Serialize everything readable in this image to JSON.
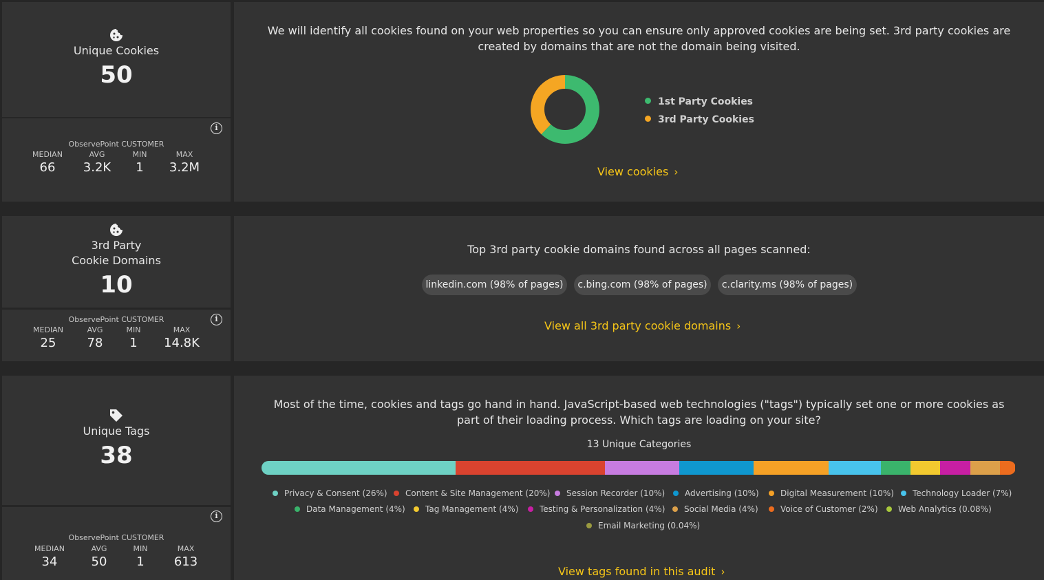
{
  "cookies": {
    "title": "Unique Cookies",
    "value": "50",
    "bench_label": "ObservePoint CUSTOMER",
    "stats": [
      {
        "label": "MEDIAN",
        "value": "66"
      },
      {
        "label": "AVG",
        "value": "3.2K"
      },
      {
        "label": "MIN",
        "value": "1"
      },
      {
        "label": "MAX",
        "value": "3.2M"
      }
    ],
    "description": "We will identify all cookies found on your web properties so you can ensure only approved cookies are being set. 3rd party cookies are created by domains that are not the domain being visited.",
    "link": "View cookies"
  },
  "domains": {
    "title_line1": "3rd Party",
    "title_line2": "Cookie Domains",
    "value": "10",
    "bench_label": "ObservePoint CUSTOMER",
    "stats": [
      {
        "label": "MEDIAN",
        "value": "25"
      },
      {
        "label": "AVG",
        "value": "78"
      },
      {
        "label": "MIN",
        "value": "1"
      },
      {
        "label": "MAX",
        "value": "14.8K"
      }
    ],
    "description": "Top 3rd party cookie domains found across all pages scanned:",
    "chips": [
      "linkedin.com (98% of pages)",
      "c.bing.com (98% of pages)",
      "c.clarity.ms (98% of pages)"
    ],
    "link": "View all 3rd party cookie domains"
  },
  "tags": {
    "title": "Unique Tags",
    "value": "38",
    "bench_label": "ObservePoint CUSTOMER",
    "stats": [
      {
        "label": "MEDIAN",
        "value": "34"
      },
      {
        "label": "AVG",
        "value": "50"
      },
      {
        "label": "MIN",
        "value": "1"
      },
      {
        "label": "MAX",
        "value": "613"
      }
    ],
    "description": "Most of the time, cookies and tags go hand in hand. JavaScript-based web technologies (\"tags\") typically set one or more cookies as part of their loading process. Which tags are loading on your site?",
    "categories_heading": "13 Unique Categories",
    "link": "View tags found in this audit"
  },
  "chart_data": [
    {
      "type": "pie",
      "title": "",
      "series": [
        {
          "name": "1st Party Cookies",
          "value": 62,
          "color": "#3dba6f"
        },
        {
          "name": "3rd Party Cookies",
          "value": 38,
          "color": "#f5a623"
        }
      ],
      "legend": "right"
    },
    {
      "type": "bar",
      "title": "13 Unique Categories",
      "stacked": true,
      "series": [
        {
          "name": "Privacy & Consent (26%)",
          "value": 26,
          "color": "#6ed1c4"
        },
        {
          "name": "Content & Site Management (20%)",
          "value": 20,
          "color": "#d9432f"
        },
        {
          "name": "Session Recorder (10%)",
          "value": 10,
          "color": "#c77ce0"
        },
        {
          "name": "Advertising (10%)",
          "value": 10,
          "color": "#0f97cf"
        },
        {
          "name": "Digital Measurement (10%)",
          "value": 10,
          "color": "#f5a126"
        },
        {
          "name": "Technology Loader (7%)",
          "value": 7,
          "color": "#48c3ec"
        },
        {
          "name": "Data Management (4%)",
          "value": 4,
          "color": "#3ab36b"
        },
        {
          "name": "Tag Management (4%)",
          "value": 4,
          "color": "#f2c92f"
        },
        {
          "name": "Testing & Personalization (4%)",
          "value": 4,
          "color": "#c71fa3"
        },
        {
          "name": "Social Media (4%)",
          "value": 4,
          "color": "#dca04a"
        },
        {
          "name": "Voice of Customer (2%)",
          "value": 2,
          "color": "#ec6c1e"
        },
        {
          "name": "Web Analytics (0.08%)",
          "value": 0.08,
          "color": "#a8c83c"
        },
        {
          "name": "Email Marketing (0.04%)",
          "value": 0.04,
          "color": "#9a9a40"
        }
      ]
    }
  ]
}
